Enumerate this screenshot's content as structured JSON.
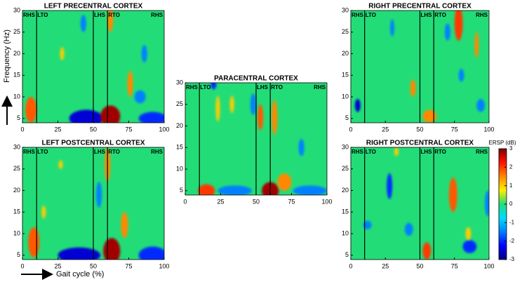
{
  "shared": {
    "ylabel": "Frequency (Hz)",
    "xlabel": "Gait cycle (%)",
    "xlim": [
      0,
      100
    ],
    "xticks": [
      0,
      25,
      50,
      75,
      100
    ],
    "ylim": [
      4,
      30
    ],
    "yticks": [
      5,
      10,
      15,
      20,
      25,
      30
    ],
    "events": [
      {
        "label": "RHS",
        "x": 0
      },
      {
        "label": "LTO",
        "x": 10
      },
      {
        "label": "LHS",
        "x": 50
      },
      {
        "label": "RTO",
        "x": 60
      },
      {
        "label": "RHS",
        "x": 100
      }
    ],
    "colorbar": {
      "label": "ERSP (dB)",
      "vlim": [
        -3,
        3
      ],
      "ticks": [
        -3,
        -2,
        -1,
        0,
        1,
        2,
        3
      ],
      "colormap": [
        "#00007f",
        "#0000ff",
        "#0080ff",
        "#00dcff",
        "#22dd77",
        "#ffee00",
        "#ff8800",
        "#ff1100",
        "#7f0000"
      ]
    }
  },
  "chart_data": [
    {
      "type": "heatmap",
      "title": "LEFT PRECENTRAL CORTEX",
      "blobs": [
        {
          "x": 45,
          "y": 5,
          "dx": 12,
          "dy": 2,
          "value": -2.5
        },
        {
          "x": 62,
          "y": 5.5,
          "dx": 7,
          "dy": 2.5,
          "value": 2.8
        },
        {
          "x": 6,
          "y": 7,
          "dx": 4,
          "dy": 3,
          "value": 1.8
        },
        {
          "x": 92,
          "y": 5,
          "dx": 10,
          "dy": 1.5,
          "value": -2
        },
        {
          "x": 76,
          "y": 13,
          "dx": 2,
          "dy": 3,
          "value": 1.5
        },
        {
          "x": 62,
          "y": 28,
          "dx": 2,
          "dy": 3,
          "value": 1.5
        },
        {
          "x": 28,
          "y": 20,
          "dx": 1.5,
          "dy": 1.5,
          "value": 1
        },
        {
          "x": 43,
          "y": 27,
          "dx": 2,
          "dy": 2,
          "value": -1.5
        },
        {
          "x": 86,
          "y": 20,
          "dx": 2,
          "dy": 2,
          "value": -1.5
        },
        {
          "x": 83,
          "y": 10,
          "dx": 4,
          "dy": 1.5,
          "value": -1.5
        }
      ]
    },
    {
      "type": "heatmap",
      "title": "LEFT POSTCENTRAL CORTEX",
      "blobs": [
        {
          "x": 40,
          "y": 5,
          "dx": 15,
          "dy": 1.8,
          "value": -2.5
        },
        {
          "x": 63,
          "y": 6,
          "dx": 6,
          "dy": 3,
          "value": 2.8
        },
        {
          "x": 8,
          "y": 8,
          "dx": 4,
          "dy": 3.5,
          "value": 1.8
        },
        {
          "x": 60,
          "y": 26,
          "dx": 2,
          "dy": 4,
          "value": 1.5
        },
        {
          "x": 72,
          "y": 12,
          "dx": 2.5,
          "dy": 3,
          "value": 1.5
        },
        {
          "x": 92,
          "y": 5,
          "dx": 10,
          "dy": 2,
          "value": -2
        },
        {
          "x": 15,
          "y": 15,
          "dx": 1.5,
          "dy": 1.5,
          "value": 1
        },
        {
          "x": 54,
          "y": 19,
          "dx": 2,
          "dy": 3,
          "value": -1.5
        },
        {
          "x": 27,
          "y": 26,
          "dx": 1.5,
          "dy": 1,
          "value": 1
        }
      ]
    },
    {
      "type": "heatmap",
      "title": "PARACENTRAL CORTEX",
      "blobs": [
        {
          "x": 60,
          "y": 5,
          "dx": 6,
          "dy": 2,
          "value": 2.8
        },
        {
          "x": 15,
          "y": 5,
          "dx": 6,
          "dy": 1.5,
          "value": 2
        },
        {
          "x": 35,
          "y": 5,
          "dx": 12,
          "dy": 1.2,
          "value": -1.5
        },
        {
          "x": 88,
          "y": 5,
          "dx": 12,
          "dy": 1.2,
          "value": -1.5
        },
        {
          "x": 63,
          "y": 22,
          "dx": 2,
          "dy": 4,
          "value": 1.5
        },
        {
          "x": 53,
          "y": 22,
          "dx": 2,
          "dy": 3,
          "value": 1.8
        },
        {
          "x": 23,
          "y": 24,
          "dx": 1.5,
          "dy": 3,
          "value": 1
        },
        {
          "x": 33,
          "y": 25,
          "dx": 1.5,
          "dy": 2,
          "value": 1
        },
        {
          "x": 48,
          "y": 25,
          "dx": 2,
          "dy": 2.5,
          "value": -1.5
        },
        {
          "x": 70,
          "y": 7,
          "dx": 5,
          "dy": 2,
          "value": 1.5
        },
        {
          "x": 82,
          "y": 15,
          "dx": 2,
          "dy": 2,
          "value": -1.5
        },
        {
          "x": 20,
          "y": 29.5,
          "dx": 2,
          "dy": 1,
          "value": -2
        }
      ]
    },
    {
      "type": "heatmap",
      "title": "RIGHT PRECENTRAL CORTEX",
      "blobs": [
        {
          "x": 78,
          "y": 27,
          "dx": 3,
          "dy": 4,
          "value": 2
        },
        {
          "x": 45,
          "y": 12,
          "dx": 2,
          "dy": 2,
          "value": 1.5
        },
        {
          "x": 5,
          "y": 8,
          "dx": 2,
          "dy": 1.5,
          "value": -2.5
        },
        {
          "x": 91,
          "y": 22,
          "dx": 1.5,
          "dy": 3,
          "value": 1.5
        },
        {
          "x": 30,
          "y": 26,
          "dx": 1.5,
          "dy": 2,
          "value": -1.5
        },
        {
          "x": 70,
          "y": 25,
          "dx": 2,
          "dy": 2,
          "value": -1.5
        },
        {
          "x": 57,
          "y": 5.5,
          "dx": 5,
          "dy": 1.5,
          "value": 1.5
        },
        {
          "x": 80,
          "y": 15,
          "dx": 2,
          "dy": 1.5,
          "value": -1.5
        },
        {
          "x": 94,
          "y": 8,
          "dx": 3,
          "dy": 1.5,
          "value": -1.5
        }
      ]
    },
    {
      "type": "heatmap",
      "title": "RIGHT POSTCENTRAL CORTEX",
      "blobs": [
        {
          "x": 74,
          "y": 19,
          "dx": 3,
          "dy": 4,
          "value": 1.8
        },
        {
          "x": 55,
          "y": 6,
          "dx": 3,
          "dy": 2,
          "value": 2
        },
        {
          "x": 28,
          "y": 21,
          "dx": 2,
          "dy": 3,
          "value": -2
        },
        {
          "x": 12,
          "y": 12,
          "dx": 3,
          "dy": 1,
          "value": -1.5
        },
        {
          "x": 42,
          "y": 11,
          "dx": 3,
          "dy": 1.5,
          "value": -1.5
        },
        {
          "x": 86,
          "y": 7,
          "dx": 5,
          "dy": 1.5,
          "value": -2
        },
        {
          "x": 85,
          "y": 10,
          "dx": 2,
          "dy": 1.5,
          "value": 1
        },
        {
          "x": 99,
          "y": 17,
          "dx": 2,
          "dy": 3,
          "value": -1.5
        },
        {
          "x": 33,
          "y": 29,
          "dx": 1.5,
          "dy": 1,
          "value": 1
        }
      ]
    }
  ]
}
